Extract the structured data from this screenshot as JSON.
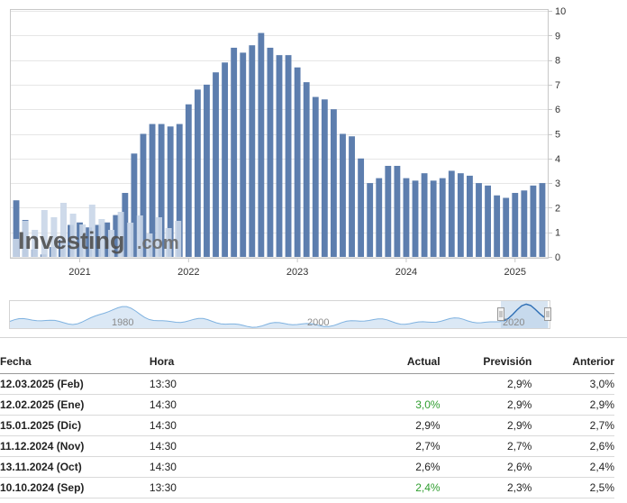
{
  "chart_data": {
    "type": "bar",
    "bar_color": "#5d7eae",
    "ylim": [
      0,
      10
    ],
    "yticks": [
      0,
      1,
      2,
      3,
      4,
      5,
      6,
      7,
      8,
      9,
      10
    ],
    "xticks": [
      "2021",
      "2022",
      "2023",
      "2024",
      "2025"
    ],
    "values": [
      2.3,
      1.5,
      0.3,
      0.1,
      0.4,
      0.7,
      1.3,
      1.4,
      1.2,
      1.3,
      1.4,
      1.7,
      2.6,
      4.2,
      5.0,
      5.4,
      5.4,
      5.3,
      5.4,
      6.2,
      6.8,
      7.0,
      7.5,
      7.9,
      8.5,
      8.3,
      8.6,
      9.1,
      8.5,
      8.2,
      8.2,
      7.7,
      7.1,
      6.5,
      6.4,
      6.0,
      5.0,
      4.9,
      4.0,
      3.0,
      3.2,
      3.7,
      3.7,
      3.2,
      3.1,
      3.4,
      3.1,
      3.2,
      3.5,
      3.4,
      3.3,
      3.0,
      2.9,
      2.5,
      2.4,
      2.6,
      2.7,
      2.9,
      3.0
    ],
    "navigator": {
      "labels": [
        "1980",
        "2000",
        "2020"
      ],
      "line_color": "#7fb2e0",
      "fill_color": "#dbe8f5"
    }
  },
  "watermark": {
    "brand": "Investing",
    "suffix": ".com"
  },
  "table": {
    "headers": {
      "date": "Fecha",
      "time": "Hora",
      "actual": "Actual",
      "forecast": "Previsión",
      "previous": "Anterior"
    },
    "rows": [
      {
        "date": "12.03.2025 (Feb)",
        "time": "13:30",
        "actual": "",
        "actual_color": "#222222",
        "forecast": "2,9%",
        "previous": "3,0%"
      },
      {
        "date": "12.02.2025 (Ene)",
        "time": "14:30",
        "actual": "3,0%",
        "actual_color": "#2f9e2f",
        "forecast": "2,9%",
        "previous": "2,9%"
      },
      {
        "date": "15.01.2025 (Dic)",
        "time": "14:30",
        "actual": "2,9%",
        "actual_color": "#222222",
        "forecast": "2,9%",
        "previous": "2,7%"
      },
      {
        "date": "11.12.2024 (Nov)",
        "time": "14:30",
        "actual": "2,7%",
        "actual_color": "#222222",
        "forecast": "2,7%",
        "previous": "2,6%"
      },
      {
        "date": "13.11.2024 (Oct)",
        "time": "14:30",
        "actual": "2,6%",
        "actual_color": "#222222",
        "forecast": "2,6%",
        "previous": "2,4%"
      },
      {
        "date": "10.10.2024 (Sep)",
        "time": "13:30",
        "actual": "2,4%",
        "actual_color": "#2f9e2f",
        "forecast": "2,3%",
        "previous": "2,5%"
      }
    ]
  }
}
